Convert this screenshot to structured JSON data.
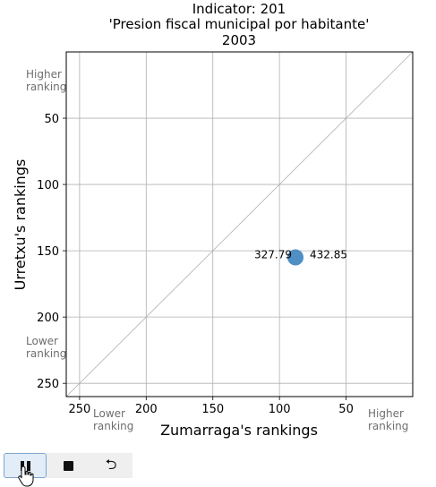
{
  "chart_data": {
    "type": "scatter",
    "title_lines": [
      "Indicator: 201",
      "'Presion fiscal municipal por habitante'",
      "2003"
    ],
    "xlabel": "Zumarraga's rankings",
    "ylabel": "Urretxu's rankings",
    "xlim": [
      260,
      0
    ],
    "ylim": [
      260,
      0
    ],
    "x_ticks": [
      250,
      200,
      150,
      100,
      50
    ],
    "y_ticks": [
      50,
      100,
      150,
      200,
      250
    ],
    "grid": true,
    "diagonal": true,
    "points": [
      {
        "x": 88,
        "y": 155,
        "label_left": "327.79",
        "label_right": "432.85",
        "color": "#4f8fc4"
      }
    ],
    "annotations": {
      "y_top": [
        "Higher",
        "ranking"
      ],
      "y_bottom": [
        "Lower",
        "ranking"
      ],
      "x_left": [
        "Lower",
        "ranking"
      ],
      "x_right": [
        "Higher",
        "ranking"
      ]
    }
  },
  "controls": {
    "pause_icon": "pause-icon",
    "stop_icon": "stop-icon",
    "loop_icon": "loop-icon"
  }
}
